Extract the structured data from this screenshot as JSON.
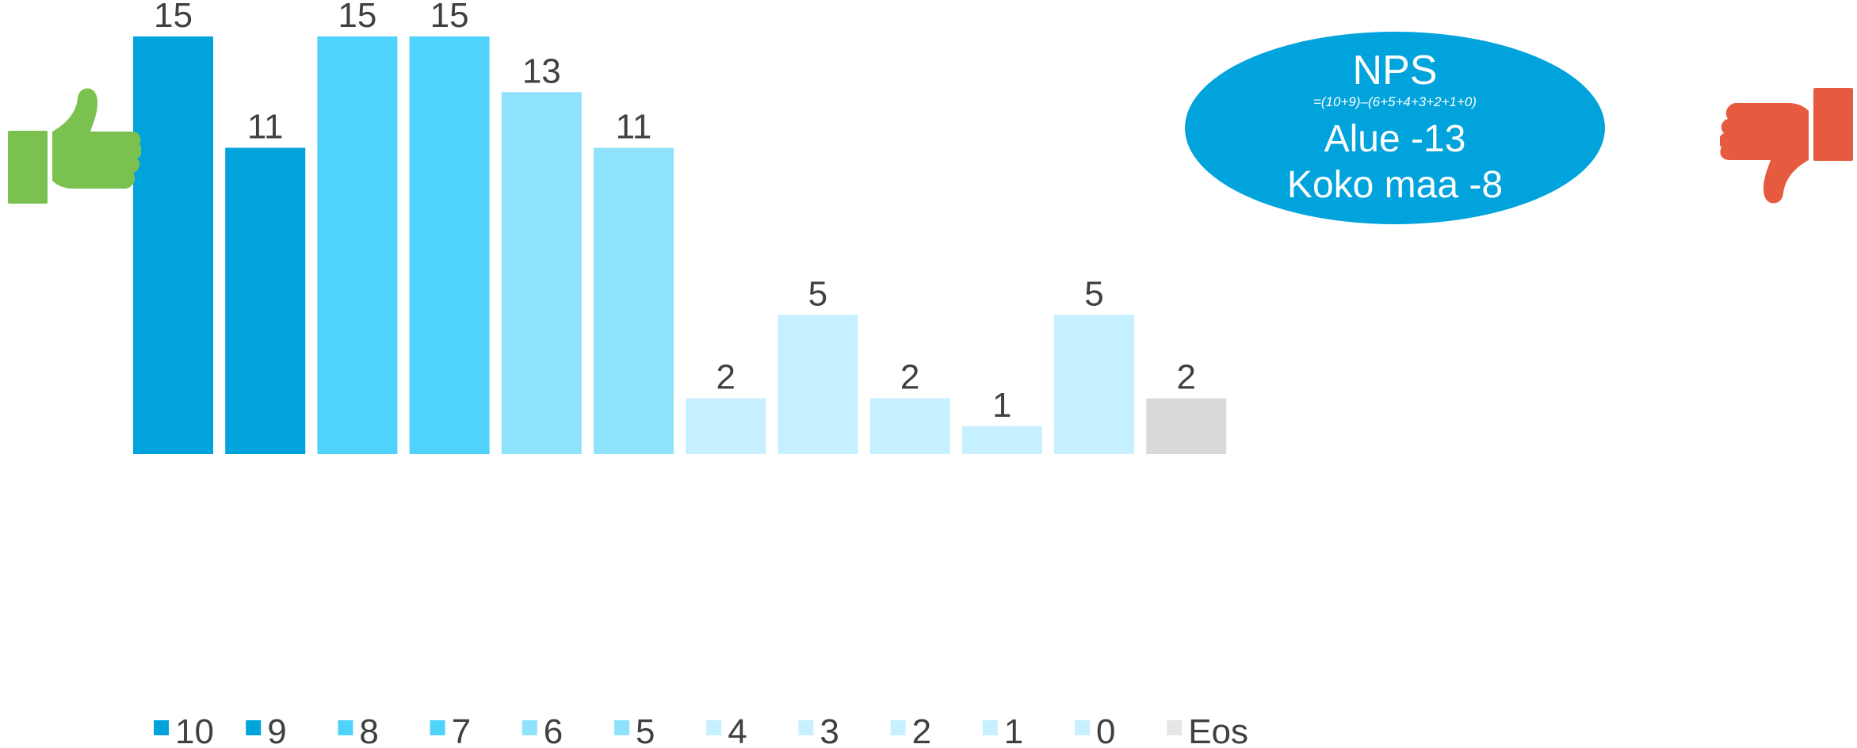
{
  "chart_data": {
    "type": "bar",
    "title": "",
    "xlabel": "",
    "ylabel": "",
    "ylim": [
      0,
      15
    ],
    "grid": false,
    "legend_position": "bottom",
    "categories": [
      "10",
      "9",
      "8",
      "7",
      "6",
      "5",
      "4",
      "3",
      "2",
      "1",
      "0",
      "Eos"
    ],
    "values": [
      15,
      11,
      15,
      15,
      13,
      11,
      2,
      5,
      2,
      1,
      5,
      2
    ],
    "colors": [
      "#00a3dc",
      "#00a3dc",
      "#4fd2fc",
      "#4fd2fc",
      "#8fe2fc",
      "#8fe2fc",
      "#c6efff",
      "#c6efff",
      "#c6efff",
      "#c6efff",
      "#c6efff",
      "#d9d9d9"
    ],
    "legend": {
      "colors": [
        "#00a3dc",
        "#00a3dc",
        "#4fd2fc",
        "#4fd2fc",
        "#8fe2fc",
        "#8fe2fc",
        "#c6efff",
        "#c6efff",
        "#c6efff",
        "#c6efff",
        "#c6efff",
        "#e6e6e6"
      ]
    }
  },
  "nps_box": {
    "title": "NPS",
    "formula": "=(10+9)–(6+5+4+3+2+1+0)",
    "area_line": "Alue -13",
    "country_line": "Koko maa -8",
    "color": "#00a3dc"
  },
  "icons": {
    "positive": "thumbs-up-icon",
    "negative": "thumbs-down-icon",
    "positive_color": "#7ac14f",
    "negative_color": "#e65a3f"
  },
  "text_color": "#404040"
}
